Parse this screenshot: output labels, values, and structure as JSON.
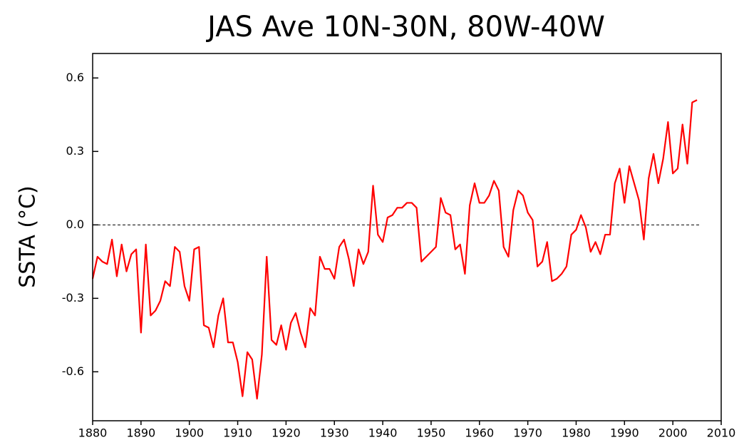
{
  "chart_data": {
    "type": "line",
    "title": "JAS Ave 10N-30N, 80W-40W",
    "y_label": "SSTA (°C)",
    "xlim": [
      1880,
      2010
    ],
    "xticks": [
      1880,
      1890,
      1900,
      1910,
      1920,
      1930,
      1940,
      1950,
      1960,
      1970,
      1980,
      1990,
      2000,
      2010
    ],
    "ylim": [
      -0.8,
      0.7
    ],
    "yticks": [
      -0.6,
      -0.3,
      {
        "value": 0,
        "label": "0.0"
      },
      0.3,
      0.6
    ],
    "zero_line": true,
    "x": [
      1880,
      1881,
      1882,
      1883,
      1884,
      1885,
      1886,
      1887,
      1888,
      1889,
      1890,
      1891,
      1892,
      1893,
      1894,
      1895,
      1896,
      1897,
      1898,
      1899,
      1900,
      1901,
      1902,
      1903,
      1904,
      1905,
      1906,
      1907,
      1908,
      1909,
      1910,
      1911,
      1912,
      1913,
      1914,
      1915,
      1916,
      1917,
      1918,
      1919,
      1920,
      1921,
      1922,
      1923,
      1924,
      1925,
      1926,
      1927,
      1928,
      1929,
      1930,
      1931,
      1932,
      1933,
      1934,
      1935,
      1936,
      1937,
      1938,
      1939,
      1940,
      1941,
      1942,
      1943,
      1944,
      1945,
      1946,
      1947,
      1948,
      1949,
      1950,
      1951,
      1952,
      1953,
      1954,
      1955,
      1956,
      1957,
      1958,
      1959,
      1960,
      1961,
      1962,
      1963,
      1964,
      1965,
      1966,
      1967,
      1968,
      1969,
      1970,
      1971,
      1972,
      1973,
      1974,
      1975,
      1976,
      1977,
      1978,
      1979,
      1980,
      1981,
      1982,
      1983,
      1984,
      1985,
      1986,
      1987,
      1988,
      1989,
      1990,
      1991,
      1992,
      1993,
      1994,
      1995,
      1996,
      1997,
      1998,
      1999,
      2000,
      2001,
      2002,
      2003,
      2004,
      2005
    ],
    "series": [
      {
        "name": "SSTA",
        "color": "#ff0000",
        "values": [
          -0.22,
          -0.13,
          -0.15,
          -0.16,
          -0.06,
          -0.21,
          -0.08,
          -0.19,
          -0.12,
          -0.1,
          -0.44,
          -0.08,
          -0.37,
          -0.35,
          -0.31,
          -0.23,
          -0.25,
          -0.09,
          -0.11,
          -0.25,
          -0.31,
          -0.1,
          -0.09,
          -0.41,
          -0.42,
          -0.5,
          -0.37,
          -0.3,
          -0.48,
          -0.48,
          -0.56,
          -0.7,
          -0.52,
          -0.55,
          -0.71,
          -0.53,
          -0.13,
          -0.47,
          -0.49,
          -0.41,
          -0.51,
          -0.4,
          -0.36,
          -0.44,
          -0.5,
          -0.34,
          -0.37,
          -0.13,
          -0.18,
          -0.18,
          -0.22,
          -0.09,
          -0.06,
          -0.14,
          -0.25,
          -0.1,
          -0.16,
          -0.11,
          0.16,
          -0.04,
          -0.07,
          0.03,
          0.04,
          0.07,
          0.07,
          0.09,
          0.09,
          0.07,
          -0.15,
          -0.13,
          -0.11,
          -0.09,
          0.11,
          0.05,
          0.04,
          -0.1,
          -0.08,
          -0.2,
          0.08,
          0.17,
          0.09,
          0.09,
          0.12,
          0.18,
          0.14,
          -0.09,
          -0.13,
          0.06,
          0.14,
          0.12,
          0.05,
          0.02,
          -0.17,
          -0.15,
          -0.07,
          -0.23,
          -0.22,
          -0.2,
          -0.17,
          -0.04,
          -0.02,
          0.04,
          -0.01,
          -0.11,
          -0.07,
          -0.12,
          -0.04,
          -0.04,
          0.17,
          0.23,
          0.09,
          0.24,
          0.17,
          0.1,
          -0.06,
          0.19,
          0.29,
          0.17,
          0.27,
          0.42,
          0.21,
          0.23,
          0.41,
          0.25,
          0.5,
          0.51
        ]
      }
    ]
  }
}
